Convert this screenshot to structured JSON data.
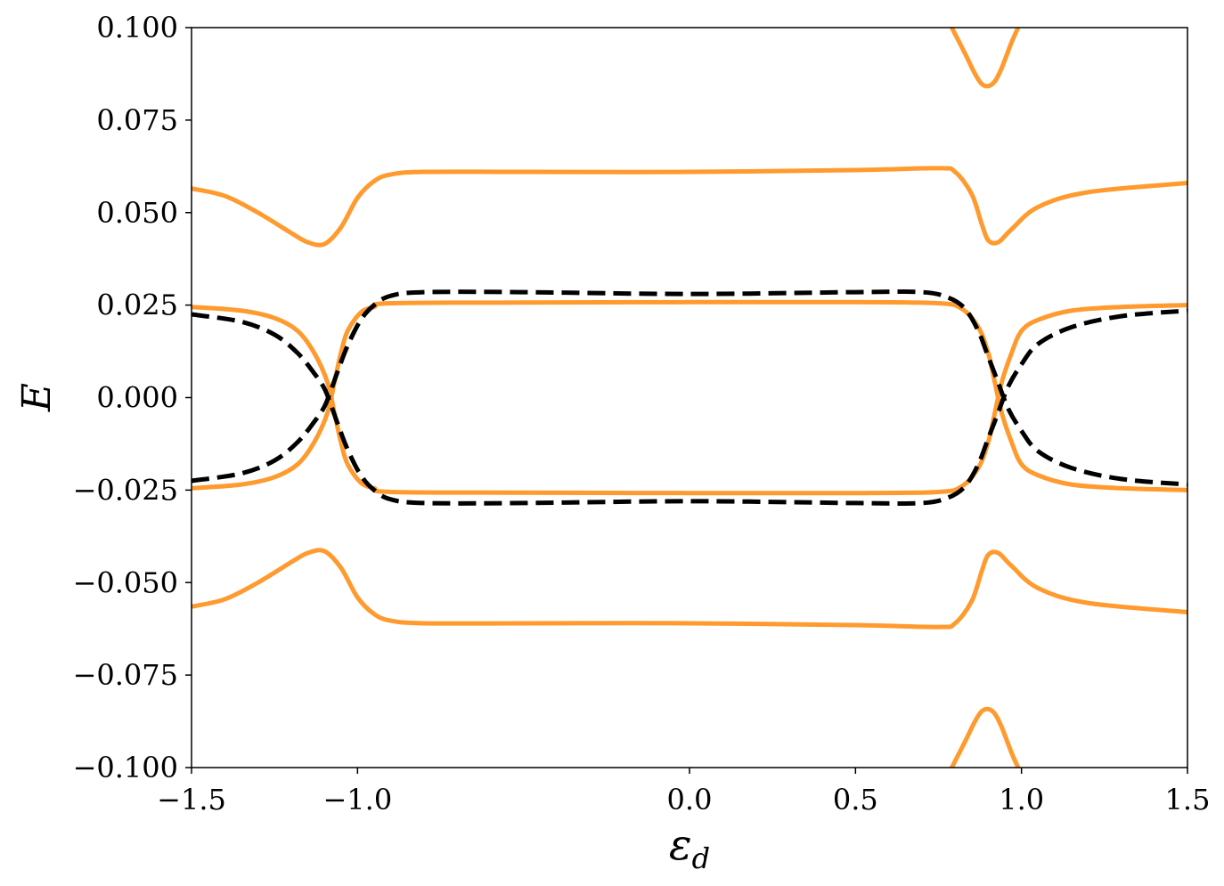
{
  "chart_data": {
    "type": "line",
    "title": "",
    "xlabel": "ε",
    "xlabel_subscript": "d",
    "ylabel": "E",
    "xlim": [
      -1.5,
      1.5
    ],
    "ylim": [
      -0.1,
      0.1
    ],
    "grid": false,
    "x_ticks": [
      {
        "value": -1.5,
        "label": "−1.5"
      },
      {
        "value": -1.0,
        "label": "−1.0"
      },
      {
        "value": 0.0,
        "label": "0.0"
      },
      {
        "value": 0.5,
        "label": "0.5"
      },
      {
        "value": 1.0,
        "label": "1.0"
      },
      {
        "value": 1.5,
        "label": "1.5"
      }
    ],
    "y_ticks": [
      {
        "value": 0.1,
        "label": "0.100"
      },
      {
        "value": 0.075,
        "label": "0.075"
      },
      {
        "value": 0.05,
        "label": "0.050"
      },
      {
        "value": 0.025,
        "label": "0.025"
      },
      {
        "value": 0.0,
        "label": "0.000"
      },
      {
        "value": -0.025,
        "label": "−0.025"
      },
      {
        "value": -0.05,
        "label": "−0.050"
      },
      {
        "value": -0.075,
        "label": "−0.075"
      },
      {
        "value": -0.1,
        "label": "−0.100"
      }
    ],
    "series": [
      {
        "color": "#FF9A2E",
        "style": "solid",
        "x": [
          -1.5,
          -1.4,
          -1.3,
          -1.2,
          -1.15,
          -1.1,
          -1.05,
          -1.0,
          -0.95,
          -0.9,
          -0.8,
          -0.5,
          0.0,
          0.5,
          0.75,
          0.8,
          0.85,
          0.88,
          0.9,
          0.93,
          0.97,
          1.05,
          1.2,
          1.5
        ],
        "y": [
          0.0565,
          0.0545,
          0.05,
          0.0445,
          0.042,
          0.0415,
          0.046,
          0.054,
          0.0585,
          0.0603,
          0.061,
          0.061,
          0.061,
          0.0615,
          0.062,
          0.061,
          0.055,
          0.047,
          0.0425,
          0.042,
          0.0455,
          0.0515,
          0.0555,
          0.058
        ]
      },
      {
        "color": "#FF9A2E",
        "style": "solid",
        "x": [
          -1.5,
          -1.4,
          -1.3,
          -1.2,
          -1.15,
          -1.1,
          -1.05,
          -1.0,
          -0.95,
          -0.9,
          -0.8,
          -0.5,
          0.0,
          0.5,
          0.75,
          0.8,
          0.85,
          0.88,
          0.9,
          0.93,
          0.97,
          1.05,
          1.2,
          1.5
        ],
        "y": [
          -0.0565,
          -0.0545,
          -0.05,
          -0.0445,
          -0.042,
          -0.0415,
          -0.046,
          -0.054,
          -0.0585,
          -0.0603,
          -0.061,
          -0.061,
          -0.061,
          -0.0615,
          -0.062,
          -0.061,
          -0.055,
          -0.047,
          -0.0425,
          -0.042,
          -0.0455,
          -0.0515,
          -0.0555,
          -0.058
        ]
      },
      {
        "color": "#FF9A2E",
        "style": "solid",
        "x": [
          -1.5,
          -1.35,
          -1.25,
          -1.18,
          -1.13,
          -1.09,
          -1.07,
          -1.05,
          -1.03,
          -0.99,
          -0.95,
          -0.9,
          -0.5,
          0.0,
          0.5,
          0.75,
          0.82,
          0.87,
          0.9,
          0.92,
          0.94,
          0.97,
          1.0,
          1.05,
          1.15,
          1.3,
          1.5
        ],
        "y": [
          0.0245,
          0.0235,
          0.0215,
          0.018,
          0.012,
          0.004,
          -0.004,
          -0.012,
          -0.018,
          -0.023,
          -0.0245,
          -0.0255,
          -0.0257,
          -0.0258,
          -0.0258,
          -0.0255,
          -0.024,
          -0.019,
          -0.012,
          -0.004,
          0.004,
          0.012,
          0.018,
          0.021,
          0.0235,
          0.0245,
          0.025
        ]
      },
      {
        "color": "#FF9A2E",
        "style": "solid",
        "x": [
          -1.5,
          -1.35,
          -1.25,
          -1.18,
          -1.13,
          -1.09,
          -1.07,
          -1.05,
          -1.03,
          -0.99,
          -0.95,
          -0.9,
          -0.5,
          0.0,
          0.5,
          0.75,
          0.82,
          0.87,
          0.9,
          0.92,
          0.94,
          0.97,
          1.0,
          1.05,
          1.15,
          1.3,
          1.5
        ],
        "y": [
          -0.0245,
          -0.0235,
          -0.0215,
          -0.018,
          -0.012,
          -0.004,
          0.004,
          0.012,
          0.018,
          0.023,
          0.0245,
          0.0255,
          0.0257,
          0.0258,
          0.0258,
          0.0255,
          0.024,
          0.019,
          0.012,
          0.004,
          -0.004,
          -0.012,
          -0.018,
          -0.021,
          -0.0235,
          -0.0245,
          -0.025
        ]
      },
      {
        "color": "#FF9A2E",
        "style": "solid",
        "x": [
          0.79,
          0.83,
          0.86,
          0.88,
          0.9,
          0.92,
          0.94,
          0.97,
          0.99
        ],
        "y": [
          0.1,
          0.093,
          0.0875,
          0.0848,
          0.0842,
          0.0855,
          0.089,
          0.096,
          0.1
        ]
      },
      {
        "color": "#FF9A2E",
        "style": "solid",
        "x": [
          0.79,
          0.83,
          0.86,
          0.88,
          0.9,
          0.92,
          0.94,
          0.97,
          0.99
        ],
        "y": [
          -0.1,
          -0.093,
          -0.0875,
          -0.0848,
          -0.0842,
          -0.0855,
          -0.089,
          -0.096,
          -0.1
        ]
      },
      {
        "color": "#000000",
        "style": "dashed",
        "x": [
          -1.5,
          -1.35,
          -1.25,
          -1.18,
          -1.13,
          -1.1,
          -1.08,
          -1.06,
          -1.03,
          -0.99,
          -0.95,
          -0.9,
          -0.8,
          -0.5,
          0.0,
          0.5,
          0.7,
          0.78,
          0.83,
          0.87,
          0.9,
          0.93,
          0.96,
          1.0,
          1.05,
          1.15,
          1.3,
          1.5
        ],
        "y": [
          0.0225,
          0.0205,
          0.017,
          0.012,
          0.0065,
          0.0025,
          -0.002,
          -0.007,
          -0.014,
          -0.021,
          -0.025,
          -0.0275,
          -0.0285,
          -0.0285,
          -0.028,
          -0.0285,
          -0.0285,
          -0.027,
          -0.024,
          -0.018,
          -0.011,
          -0.004,
          0.003,
          0.009,
          0.0145,
          0.019,
          0.022,
          0.0235
        ]
      },
      {
        "color": "#000000",
        "style": "dashed",
        "x": [
          -1.5,
          -1.35,
          -1.25,
          -1.18,
          -1.13,
          -1.1,
          -1.08,
          -1.06,
          -1.03,
          -0.99,
          -0.95,
          -0.9,
          -0.8,
          -0.5,
          0.0,
          0.5,
          0.7,
          0.78,
          0.83,
          0.87,
          0.9,
          0.93,
          0.96,
          1.0,
          1.05,
          1.15,
          1.3,
          1.5
        ],
        "y": [
          -0.0225,
          -0.0205,
          -0.017,
          -0.012,
          -0.0065,
          -0.0025,
          0.002,
          0.007,
          0.014,
          0.021,
          0.025,
          0.0275,
          0.0285,
          0.0285,
          0.028,
          0.0285,
          0.0285,
          0.027,
          0.024,
          0.018,
          0.011,
          0.004,
          -0.003,
          -0.009,
          -0.0145,
          -0.019,
          -0.022,
          -0.0235
        ]
      }
    ]
  }
}
